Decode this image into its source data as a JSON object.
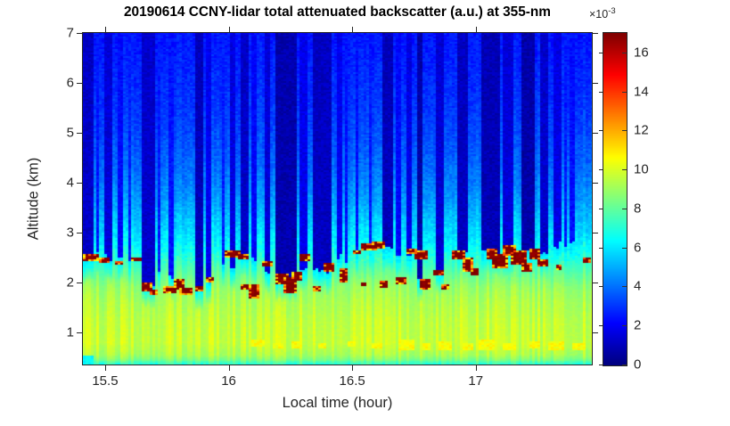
{
  "colorbar": {
    "exponent_base": "×10",
    "exponent_power": "-3",
    "min": 0,
    "max": 17,
    "ticks": [
      0,
      2,
      4,
      6,
      8,
      10,
      12,
      14,
      16
    ],
    "colormap": "jet"
  },
  "axes_color": "#262626",
  "chart_data": {
    "type": "heatmap",
    "title": "20190614 CCNY-lidar total attenuated backscatter (a.u.) at 355-nm",
    "xlabel": "Local time (hour)",
    "ylabel": "Altitude (km)",
    "x_range": [
      15.41,
      17.47
    ],
    "y_range": [
      0.36,
      7.0
    ],
    "x_ticks": [
      15.5,
      16,
      16.5,
      17
    ],
    "y_ticks": [
      1,
      2,
      3,
      4,
      5,
      6,
      7
    ],
    "colormap": "jet",
    "value_scale_label": "×10⁻³ a.u.",
    "value_range": [
      0,
      17
    ],
    "legend_position": "right-colorbar",
    "grid": false,
    "background_altitude_profile": [
      [
        0.36,
        7.0
      ],
      [
        0.45,
        8.5
      ],
      [
        0.55,
        9.3
      ],
      [
        0.8,
        9.8
      ],
      [
        1.2,
        9.7
      ],
      [
        1.6,
        9.4
      ],
      [
        1.9,
        9.0
      ],
      [
        2.1,
        8.4
      ],
      [
        2.35,
        7.6
      ],
      [
        2.6,
        6.8
      ],
      [
        2.9,
        6.1
      ],
      [
        3.2,
        5.6
      ],
      [
        3.6,
        4.9
      ],
      [
        4.0,
        4.3
      ],
      [
        4.5,
        3.8
      ],
      [
        5.0,
        3.4
      ],
      [
        5.5,
        3.1
      ],
      [
        6.0,
        2.9
      ],
      [
        6.5,
        2.7
      ],
      [
        7.0,
        2.5
      ]
    ],
    "cloud_attenuated_stripes": [
      {
        "t0": 15.41,
        "t1": 15.457,
        "base_km": 2.45,
        "value": 1.2
      },
      {
        "t0": 15.46,
        "t1": 15.478,
        "base_km": 2.6,
        "value": 2.4
      },
      {
        "t0": 15.5,
        "t1": 15.529,
        "base_km": 2.5,
        "value": 1.5
      },
      {
        "t0": 15.547,
        "t1": 15.569,
        "base_km": 2.45,
        "value": 2.2
      },
      {
        "t0": 15.597,
        "t1": 15.608,
        "base_km": 2.4,
        "value": 2.6
      },
      {
        "t0": 15.652,
        "t1": 15.699,
        "base_km": 1.95,
        "value": 1.3
      },
      {
        "t0": 15.717,
        "t1": 15.728,
        "base_km": 2.2,
        "value": 2.5
      },
      {
        "t0": 15.76,
        "t1": 15.782,
        "base_km": 2.1,
        "value": 2.4
      },
      {
        "t0": 15.861,
        "t1": 15.894,
        "base_km": 1.9,
        "value": 1.0
      },
      {
        "t0": 15.908,
        "t1": 15.93,
        "base_km": 2.0,
        "value": 1.9
      },
      {
        "t0": 15.968,
        "t1": 15.979,
        "base_km": 2.4,
        "value": 2.6
      },
      {
        "t0": 16.009,
        "t1": 16.031,
        "base_km": 2.3,
        "value": 1.6
      },
      {
        "t0": 16.049,
        "t1": 16.078,
        "base_km": 2.55,
        "value": 1.2
      },
      {
        "t0": 16.096,
        "t1": 16.11,
        "base_km": 2.5,
        "value": 2.1
      },
      {
        "t0": 16.146,
        "t1": 16.171,
        "base_km": 2.2,
        "value": 1.5
      },
      {
        "t0": 16.186,
        "t1": 16.276,
        "base_km": 2.05,
        "value": 0.8
      },
      {
        "t0": 16.29,
        "t1": 16.319,
        "base_km": 2.3,
        "value": 1.8
      },
      {
        "t0": 16.345,
        "t1": 16.417,
        "base_km": 2.25,
        "value": 1.1
      },
      {
        "t0": 16.435,
        "t1": 16.457,
        "base_km": 2.5,
        "value": 1.9
      },
      {
        "t0": 16.47,
        "t1": 16.481,
        "base_km": 2.4,
        "value": 2.4
      },
      {
        "t0": 16.511,
        "t1": 16.529,
        "base_km": 2.6,
        "value": 2.3
      },
      {
        "t0": 16.564,
        "t1": 16.575,
        "base_km": 2.65,
        "value": 2.5
      },
      {
        "t0": 16.619,
        "t1": 16.666,
        "base_km": 2.72,
        "value": 1.0
      },
      {
        "t0": 16.68,
        "t1": 16.695,
        "base_km": 2.55,
        "value": 2.2
      },
      {
        "t0": 16.716,
        "t1": 16.745,
        "base_km": 2.5,
        "value": 1.7
      },
      {
        "t0": 16.76,
        "t1": 16.789,
        "base_km": 2.05,
        "value": 0.7
      },
      {
        "t0": 16.839,
        "t1": 16.868,
        "base_km": 2.2,
        "value": 1.4
      },
      {
        "t0": 16.929,
        "t1": 16.965,
        "base_km": 2.6,
        "value": 1.1
      },
      {
        "t0": 17.023,
        "t1": 17.095,
        "base_km": 2.62,
        "value": 0.9
      },
      {
        "t0": 17.113,
        "t1": 17.15,
        "base_km": 2.55,
        "value": 1.5
      },
      {
        "t0": 17.186,
        "t1": 17.243,
        "base_km": 2.6,
        "value": 0.7
      },
      {
        "t0": 17.258,
        "t1": 17.29,
        "base_km": 2.6,
        "value": 1.3
      },
      {
        "t0": 17.312,
        "t1": 17.345,
        "base_km": 2.75,
        "value": 1.7
      },
      {
        "t0": 17.355,
        "t1": 17.366,
        "base_km": 2.7,
        "value": 2.5
      },
      {
        "t0": 17.384,
        "t1": 17.406,
        "base_km": 2.8,
        "value": 2.3
      }
    ],
    "cloud_layer_blobs": [
      {
        "t": 15.44,
        "alt": 2.5,
        "w": 0.07,
        "h": 0.14,
        "value": 17
      },
      {
        "t": 15.5,
        "alt": 2.43,
        "w": 0.04,
        "h": 0.1,
        "value": 17
      },
      {
        "t": 15.56,
        "alt": 2.4,
        "w": 0.02,
        "h": 0.06,
        "value": 17
      },
      {
        "t": 15.63,
        "alt": 2.46,
        "w": 0.03,
        "h": 0.08,
        "value": 17
      },
      {
        "t": 15.67,
        "alt": 1.92,
        "w": 0.04,
        "h": 0.16,
        "value": 17
      },
      {
        "t": 15.7,
        "alt": 1.8,
        "w": 0.03,
        "h": 0.1,
        "value": 17
      },
      {
        "t": 15.76,
        "alt": 1.84,
        "w": 0.05,
        "h": 0.12,
        "value": 17
      },
      {
        "t": 15.8,
        "alt": 1.95,
        "w": 0.03,
        "h": 0.2,
        "value": 17
      },
      {
        "t": 15.83,
        "alt": 1.82,
        "w": 0.04,
        "h": 0.12,
        "value": 17
      },
      {
        "t": 15.88,
        "alt": 1.86,
        "w": 0.03,
        "h": 0.1,
        "value": 17
      },
      {
        "t": 15.93,
        "alt": 2.05,
        "w": 0.025,
        "h": 0.1,
        "value": 17
      },
      {
        "t": 16.02,
        "alt": 2.56,
        "w": 0.06,
        "h": 0.14,
        "value": 17
      },
      {
        "t": 16.06,
        "alt": 2.5,
        "w": 0.03,
        "h": 0.08,
        "value": 17
      },
      {
        "t": 16.07,
        "alt": 1.9,
        "w": 0.03,
        "h": 0.1,
        "value": 17
      },
      {
        "t": 16.1,
        "alt": 1.82,
        "w": 0.035,
        "h": 0.26,
        "value": 17
      },
      {
        "t": 16.16,
        "alt": 2.36,
        "w": 0.04,
        "h": 0.1,
        "value": 17
      },
      {
        "t": 16.22,
        "alt": 2.05,
        "w": 0.04,
        "h": 0.2,
        "value": 17
      },
      {
        "t": 16.25,
        "alt": 1.95,
        "w": 0.05,
        "h": 0.3,
        "value": 17
      },
      {
        "t": 16.28,
        "alt": 2.12,
        "w": 0.03,
        "h": 0.14,
        "value": 17
      },
      {
        "t": 16.31,
        "alt": 2.48,
        "w": 0.04,
        "h": 0.12,
        "value": 17
      },
      {
        "t": 16.36,
        "alt": 1.86,
        "w": 0.02,
        "h": 0.1,
        "value": 17
      },
      {
        "t": 16.41,
        "alt": 2.3,
        "w": 0.035,
        "h": 0.16,
        "value": 17
      },
      {
        "t": 16.47,
        "alt": 2.15,
        "w": 0.025,
        "h": 0.26,
        "value": 17
      },
      {
        "t": 16.52,
        "alt": 2.6,
        "w": 0.03,
        "h": 0.08,
        "value": 17
      },
      {
        "t": 16.55,
        "alt": 1.95,
        "w": 0.02,
        "h": 0.06,
        "value": 17
      },
      {
        "t": 16.57,
        "alt": 2.7,
        "w": 0.05,
        "h": 0.12,
        "value": 17
      },
      {
        "t": 16.61,
        "alt": 2.74,
        "w": 0.05,
        "h": 0.14,
        "value": 17
      },
      {
        "t": 16.63,
        "alt": 1.97,
        "w": 0.03,
        "h": 0.12,
        "value": 17
      },
      {
        "t": 16.7,
        "alt": 2.02,
        "w": 0.04,
        "h": 0.12,
        "value": 17
      },
      {
        "t": 16.74,
        "alt": 2.62,
        "w": 0.035,
        "h": 0.12,
        "value": 17
      },
      {
        "t": 16.78,
        "alt": 2.55,
        "w": 0.04,
        "h": 0.14,
        "value": 17
      },
      {
        "t": 16.8,
        "alt": 1.95,
        "w": 0.04,
        "h": 0.2,
        "value": 17
      },
      {
        "t": 16.85,
        "alt": 2.2,
        "w": 0.03,
        "h": 0.1,
        "value": 17
      },
      {
        "t": 16.88,
        "alt": 1.9,
        "w": 0.02,
        "h": 0.08,
        "value": 17
      },
      {
        "t": 16.93,
        "alt": 2.55,
        "w": 0.05,
        "h": 0.16,
        "value": 17
      },
      {
        "t": 16.97,
        "alt": 2.35,
        "w": 0.04,
        "h": 0.24,
        "value": 17
      },
      {
        "t": 17.0,
        "alt": 2.2,
        "w": 0.03,
        "h": 0.12,
        "value": 17
      },
      {
        "t": 17.07,
        "alt": 2.55,
        "w": 0.04,
        "h": 0.2,
        "value": 17
      },
      {
        "t": 17.1,
        "alt": 2.42,
        "w": 0.05,
        "h": 0.26,
        "value": 17
      },
      {
        "t": 17.14,
        "alt": 2.62,
        "w": 0.05,
        "h": 0.2,
        "value": 17
      },
      {
        "t": 17.18,
        "alt": 2.5,
        "w": 0.06,
        "h": 0.28,
        "value": 17
      },
      {
        "t": 17.21,
        "alt": 2.3,
        "w": 0.03,
        "h": 0.14,
        "value": 17
      },
      {
        "t": 17.24,
        "alt": 2.56,
        "w": 0.04,
        "h": 0.18,
        "value": 17
      },
      {
        "t": 17.27,
        "alt": 2.38,
        "w": 0.04,
        "h": 0.14,
        "value": 17
      },
      {
        "t": 17.34,
        "alt": 2.3,
        "w": 0.02,
        "h": 0.08,
        "value": 17
      },
      {
        "t": 17.45,
        "alt": 2.44,
        "w": 0.03,
        "h": 0.1,
        "value": 17
      }
    ],
    "boundary_layer_patches": [
      {
        "t": 15.43,
        "alt": 0.42,
        "w": 0.05,
        "h": 0.18,
        "value": 6.5
      },
      {
        "t": 16.12,
        "alt": 0.78,
        "w": 0.05,
        "h": 0.15,
        "value": 10.6
      },
      {
        "t": 16.2,
        "alt": 0.72,
        "w": 0.03,
        "h": 0.1,
        "value": 10.6
      },
      {
        "t": 16.28,
        "alt": 0.75,
        "w": 0.04,
        "h": 0.12,
        "value": 10.6
      },
      {
        "t": 16.38,
        "alt": 0.72,
        "w": 0.03,
        "h": 0.1,
        "value": 10.6
      },
      {
        "t": 16.5,
        "alt": 0.75,
        "w": 0.02,
        "h": 0.08,
        "value": 10.6
      },
      {
        "t": 16.6,
        "alt": 0.72,
        "w": 0.03,
        "h": 0.1,
        "value": 10.6
      },
      {
        "t": 16.72,
        "alt": 0.75,
        "w": 0.06,
        "h": 0.18,
        "value": 10.6
      },
      {
        "t": 16.8,
        "alt": 0.7,
        "w": 0.03,
        "h": 0.12,
        "value": 10.6
      },
      {
        "t": 16.88,
        "alt": 0.74,
        "w": 0.05,
        "h": 0.16,
        "value": 10.6
      },
      {
        "t": 16.97,
        "alt": 0.72,
        "w": 0.04,
        "h": 0.12,
        "value": 10.6
      },
      {
        "t": 17.05,
        "alt": 0.74,
        "w": 0.06,
        "h": 0.18,
        "value": 10.6
      },
      {
        "t": 17.14,
        "alt": 0.7,
        "w": 0.04,
        "h": 0.14,
        "value": 10.6
      },
      {
        "t": 17.24,
        "alt": 0.73,
        "w": 0.04,
        "h": 0.12,
        "value": 10.6
      },
      {
        "t": 17.33,
        "alt": 0.74,
        "w": 0.06,
        "h": 0.16,
        "value": 10.6
      },
      {
        "t": 17.42,
        "alt": 0.72,
        "w": 0.04,
        "h": 0.12,
        "value": 10.6
      }
    ]
  }
}
